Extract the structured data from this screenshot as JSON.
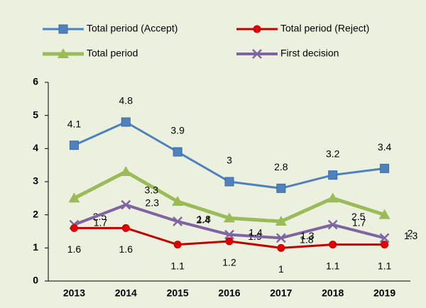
{
  "chart_data": {
    "type": "line",
    "categories": [
      "2013",
      "2014",
      "2015",
      "2016",
      "2017",
      "2018",
      "2019"
    ],
    "series": [
      {
        "name": "Total period (Accept)",
        "color": "#4f81bd",
        "marker": "square",
        "values": [
          4.1,
          4.8,
          3.9,
          3,
          2.8,
          3.2,
          3.4
        ]
      },
      {
        "name": "Total period (Reject)",
        "color": "#c00000",
        "marker": "circle",
        "values": [
          1.6,
          1.6,
          1.1,
          1.2,
          1,
          1.1,
          1.1
        ]
      },
      {
        "name": "Total period",
        "color": "#9bbb59",
        "marker": "triangle",
        "values": [
          2.5,
          3.3,
          2.4,
          1.9,
          1.8,
          2.5,
          2
        ]
      },
      {
        "name": "First decision",
        "color": "#8064a2",
        "marker": "cross",
        "values": [
          1.7,
          2.3,
          1.8,
          1.4,
          1.3,
          1.7,
          1.3
        ]
      }
    ],
    "ylim": [
      0,
      6
    ],
    "yticks": [
      0,
      1,
      2,
      3,
      4,
      5,
      6
    ],
    "grid": false,
    "legend": "top"
  }
}
